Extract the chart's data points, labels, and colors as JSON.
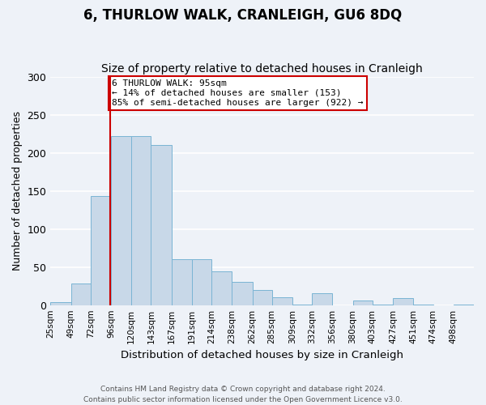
{
  "title": "6, THURLOW WALK, CRANLEIGH, GU6 8DQ",
  "subtitle": "Size of property relative to detached houses in Cranleigh",
  "xlabel": "Distribution of detached houses by size in Cranleigh",
  "ylabel": "Number of detached properties",
  "footer_line1": "Contains HM Land Registry data © Crown copyright and database right 2024.",
  "footer_line2": "Contains public sector information licensed under the Open Government Licence v3.0.",
  "bin_labels": [
    "25sqm",
    "49sqm",
    "72sqm",
    "96sqm",
    "120sqm",
    "143sqm",
    "167sqm",
    "191sqm",
    "214sqm",
    "238sqm",
    "262sqm",
    "285sqm",
    "309sqm",
    "332sqm",
    "356sqm",
    "380sqm",
    "403sqm",
    "427sqm",
    "451sqm",
    "474sqm",
    "498sqm"
  ],
  "bin_edges": [
    25,
    49,
    72,
    96,
    120,
    143,
    167,
    191,
    214,
    238,
    262,
    285,
    309,
    332,
    356,
    380,
    403,
    427,
    451,
    474,
    498
  ],
  "bar_heights": [
    4,
    28,
    143,
    222,
    222,
    210,
    60,
    60,
    44,
    30,
    20,
    10,
    1,
    16,
    0,
    6,
    1,
    9,
    1,
    0,
    1
  ],
  "bar_color": "#c8d8e8",
  "bar_edge_color": "#7ab4d4",
  "property_size": 95,
  "vline_color": "#cc0000",
  "annotation_box_color": "#cc0000",
  "annotation_text_line1": "6 THURLOW WALK: 95sqm",
  "annotation_text_line2": "← 14% of detached houses are smaller (153)",
  "annotation_text_line3": "85% of semi-detached houses are larger (922) →",
  "ylim": [
    0,
    300
  ],
  "yticks": [
    0,
    50,
    100,
    150,
    200,
    250,
    300
  ],
  "bg_color": "#eef2f8",
  "grid_color": "#ffffff",
  "title_fontsize": 12,
  "subtitle_fontsize": 10
}
